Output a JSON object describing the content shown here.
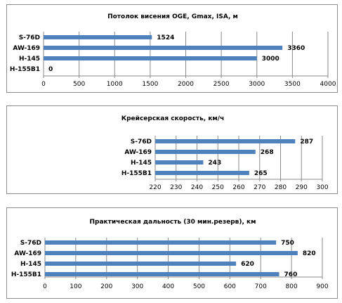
{
  "chart_data": [
    {
      "type": "bar",
      "orientation": "horizontal",
      "title": "Потолок висения OGE, Gmax, ISA, м",
      "categories": [
        "S-76D",
        "AW-169",
        "H-145",
        "H-155B1"
      ],
      "values": [
        1524,
        3360,
        3000,
        0
      ],
      "xlim": [
        0,
        4000
      ],
      "xticks": [
        "0",
        "500",
        "1000",
        "1500",
        "2000",
        "2500",
        "3000",
        "3500",
        "4000"
      ],
      "grid": "vertical",
      "bar_color": "#4f81bd"
    },
    {
      "type": "bar",
      "orientation": "horizontal",
      "title": "Крейсерская скорость, км/ч",
      "categories": [
        "S-76D",
        "AW-169",
        "H-145",
        "H-155B1"
      ],
      "values": [
        287,
        268,
        243,
        265
      ],
      "xlim": [
        220,
        300
      ],
      "xticks": [
        "220",
        "230",
        "240",
        "250",
        "260",
        "270",
        "280",
        "290",
        "300"
      ],
      "grid": "vertical",
      "bar_color": "#4f81bd"
    },
    {
      "type": "bar",
      "orientation": "horizontal",
      "title": "Практическая дальность (30 мин.резерв), км",
      "categories": [
        "S-76D",
        "AW-169",
        "H-145",
        "H-155B1"
      ],
      "values": [
        750,
        820,
        620,
        760
      ],
      "xlim": [
        0,
        900
      ],
      "xticks": [
        "0",
        "100",
        "200",
        "300",
        "400",
        "500",
        "600",
        "700",
        "800",
        "900"
      ],
      "grid": "vertical",
      "bar_color": "#4f81bd"
    }
  ]
}
